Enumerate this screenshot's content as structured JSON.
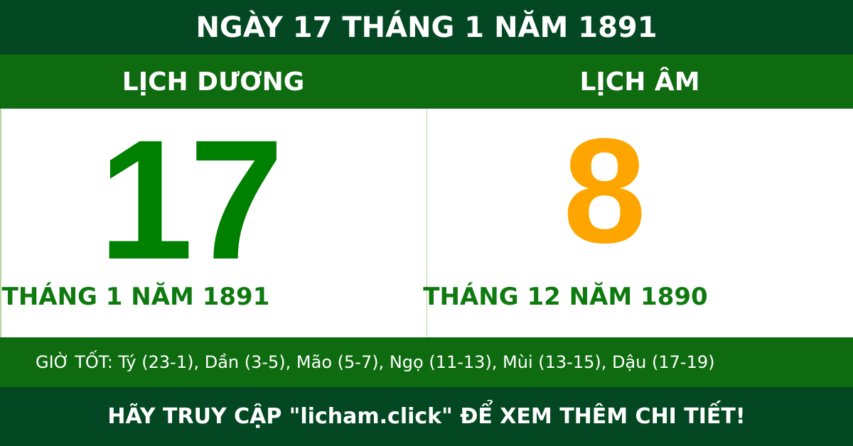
{
  "header": {
    "title": "NGÀY 17 THÁNG 1 NĂM 1891"
  },
  "solar": {
    "label": "LỊCH DƯƠNG",
    "day": "17",
    "month_year": "THÁNG 1 NĂM 1891"
  },
  "lunar": {
    "label": "LỊCH ÂM",
    "day": "8",
    "month_year": "THÁNG 12 NĂM 1890"
  },
  "good_hours": "GIỜ TỐT: Tý (23-1), Dần (3-5), Mão (5-7), Ngọ (11-13), Mùi (13-15), Dậu (17-19)",
  "footer": {
    "cta": "HÃY TRUY CẬP \"licham.click\" ĐỂ XEM THÊM CHI TIẾT!"
  },
  "colors": {
    "dark_green": "#034822",
    "green": "#0f6b10",
    "solar_day": "#008000",
    "lunar_day": "#ffa500"
  }
}
